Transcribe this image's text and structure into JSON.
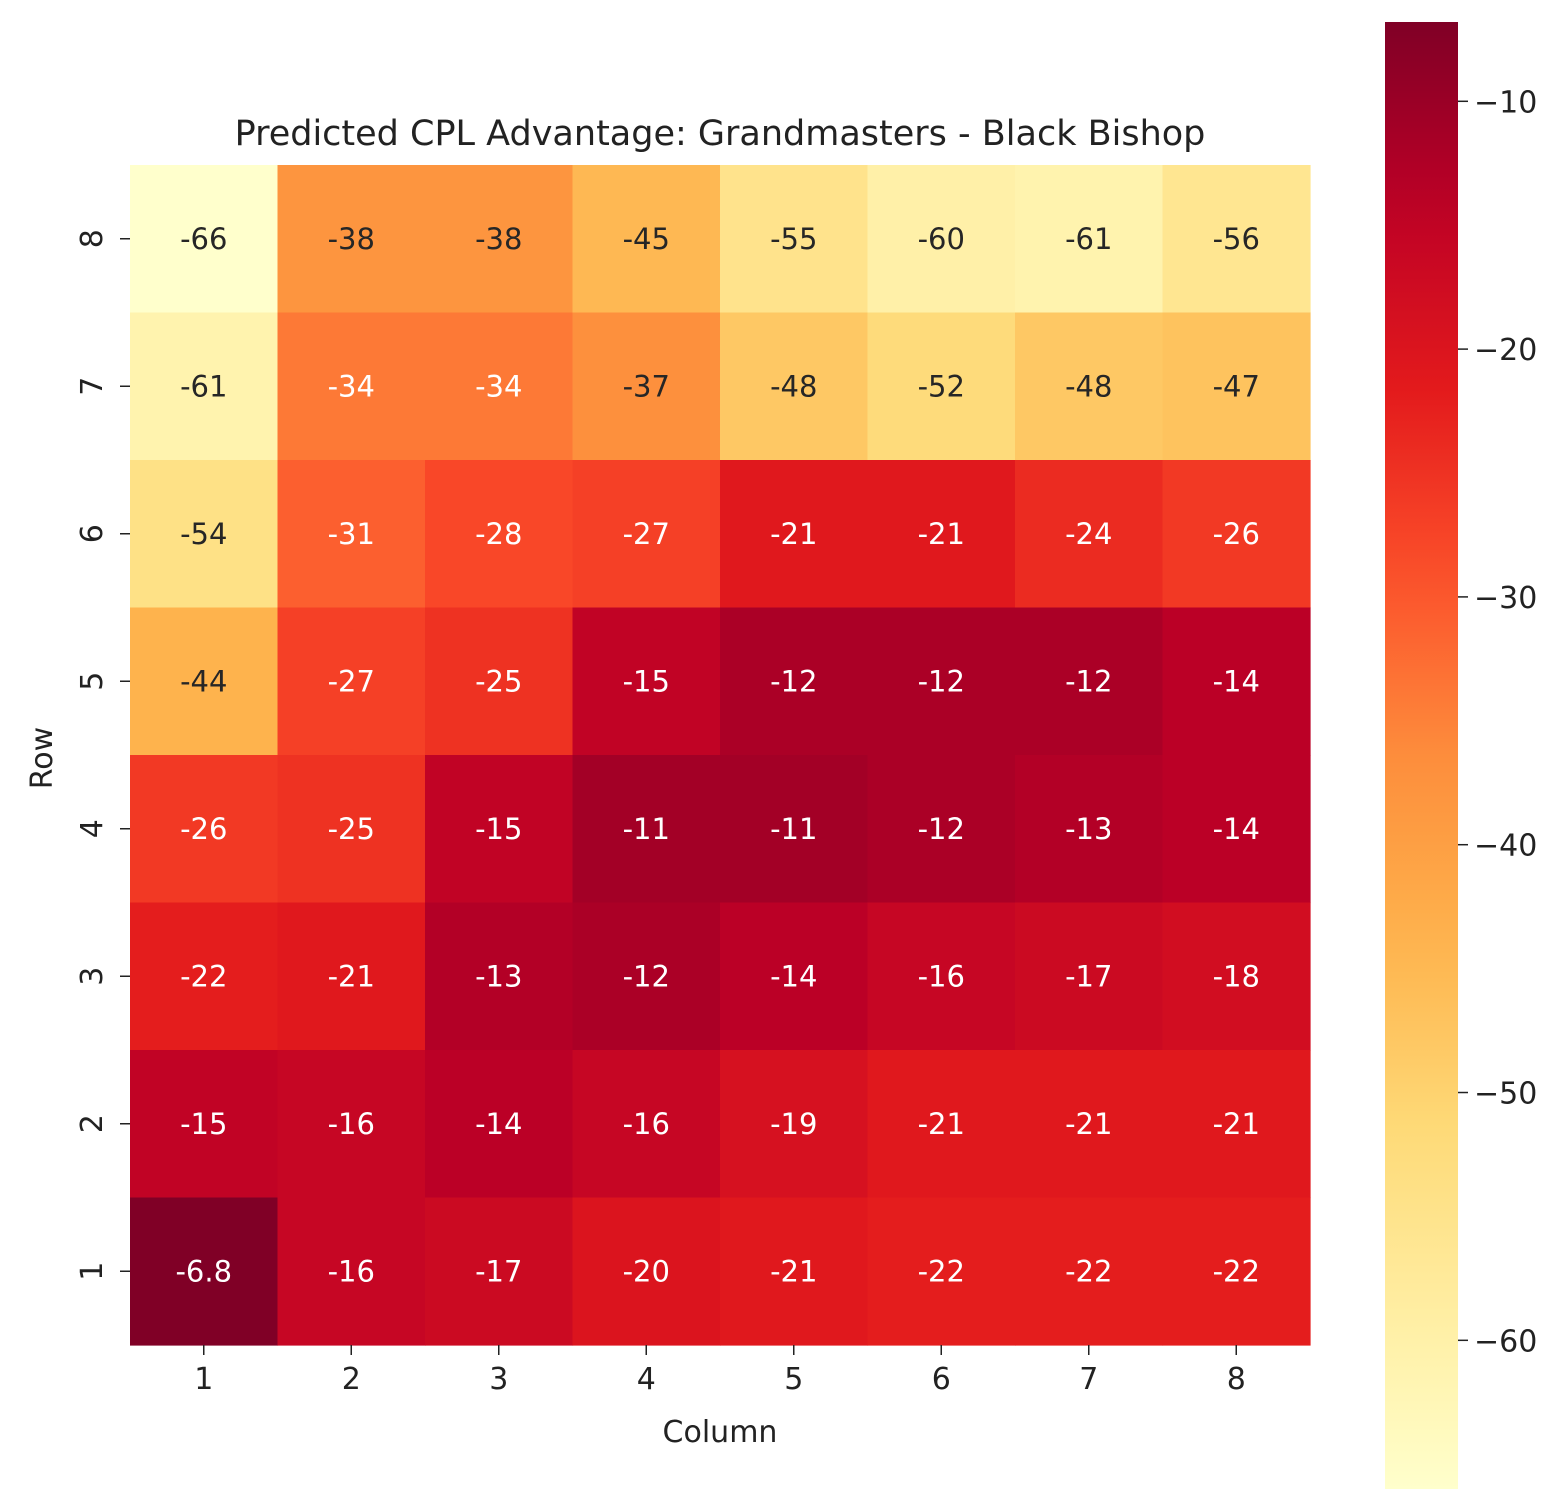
{
  "chart_data": {
    "type": "heatmap",
    "title": "Predicted CPL Advantage: Grandmasters - Black Bishop",
    "xlabel": "Column",
    "ylabel": "Row",
    "x_categories": [
      "1",
      "2",
      "3",
      "4",
      "5",
      "6",
      "7",
      "8"
    ],
    "y_categories_top_to_bottom": [
      "8",
      "7",
      "6",
      "5",
      "4",
      "3",
      "2",
      "1"
    ],
    "values_top_to_bottom": [
      [
        -66,
        -38,
        -38,
        -45,
        -55,
        -60,
        -61,
        -56
      ],
      [
        -61,
        -34,
        -34,
        -37,
        -48,
        -52,
        -48,
        -47
      ],
      [
        -54,
        -31,
        -28,
        -27,
        -21,
        -21,
        -24,
        -26
      ],
      [
        -44,
        -27,
        -25,
        -15,
        -12,
        -12,
        -12,
        -14
      ],
      [
        -26,
        -25,
        -15,
        -11,
        -11,
        -12,
        -13,
        -14
      ],
      [
        -22,
        -21,
        -13,
        -12,
        -14,
        -16,
        -17,
        -18
      ],
      [
        -15,
        -16,
        -14,
        -16,
        -19,
        -21,
        -21,
        -21
      ],
      [
        -6.8,
        -16,
        -17,
        -20,
        -21,
        -22,
        -22,
        -22
      ]
    ],
    "cell_labels_top_to_bottom": [
      [
        "-66",
        "-38",
        "-38",
        "-45",
        "-55",
        "-60",
        "-61",
        "-56"
      ],
      [
        "-61",
        "-34",
        "-34",
        "-37",
        "-48",
        "-52",
        "-48",
        "-47"
      ],
      [
        "-54",
        "-31",
        "-28",
        "-27",
        "-21",
        "-21",
        "-24",
        "-26"
      ],
      [
        "-44",
        "-27",
        "-25",
        "-15",
        "-12",
        "-12",
        "-12",
        "-14"
      ],
      [
        "-26",
        "-25",
        "-15",
        "-11",
        "-11",
        "-12",
        "-13",
        "-14"
      ],
      [
        "-22",
        "-21",
        "-13",
        "-12",
        "-14",
        "-16",
        "-17",
        "-18"
      ],
      [
        "-15",
        "-16",
        "-14",
        "-16",
        "-19",
        "-21",
        "-21",
        "-21"
      ],
      [
        "-6.8",
        "-16",
        "-17",
        "-20",
        "-21",
        "-22",
        "-22",
        "-22"
      ]
    ],
    "colormap": "YlOrRd (reversed: high values dark red, low values pale yellow)",
    "colorbar": {
      "range": [
        -66,
        -6.8
      ],
      "ticks": [
        -10,
        -20,
        -30,
        -40,
        -50,
        -60
      ],
      "tick_labels": [
        "−10",
        "−20",
        "−30",
        "−40",
        "−50",
        "−60"
      ]
    },
    "colors": {
      "low": "#ffffcc",
      "high": "#800026",
      "label_dark": "#262626",
      "label_light": "#ffffff"
    },
    "grid": false,
    "legend": "colorbar-right"
  }
}
